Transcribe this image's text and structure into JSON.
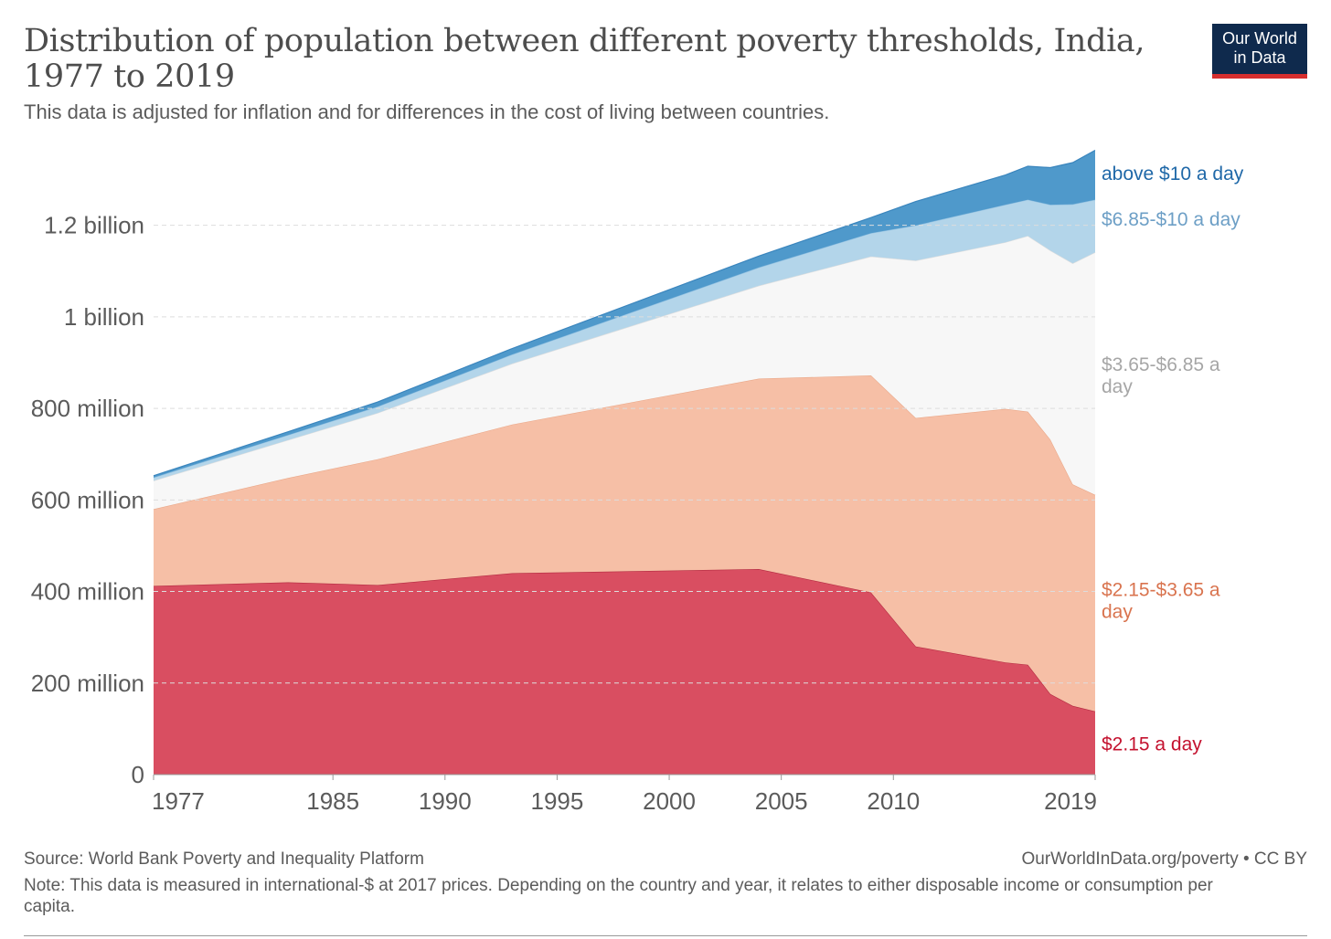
{
  "header": {
    "title": "Distribution of population between different poverty thresholds, India, 1977 to 2019",
    "subtitle": "This data is adjusted for inflation and for differences in the cost of living between countries.",
    "logo_line1": "Our World",
    "logo_line2": "in Data"
  },
  "footer": {
    "source": "Source: World Bank Poverty and Inequality Platform",
    "credit": "OurWorldInData.org/poverty • CC BY",
    "note": "Note: This data is measured in international-$ at 2017 prices. Depending on the country and year, it relates to either disposable income or consumption per capita."
  },
  "chart_data": {
    "type": "area",
    "stacked": true,
    "x": [
      1977,
      1983,
      1987,
      1993,
      2004,
      2009,
      2011,
      2015,
      2016,
      2017,
      2018,
      2019
    ],
    "x_ticks": [
      "1977",
      "1985",
      "1990",
      "1995",
      "2000",
      "2005",
      "2010",
      "2019"
    ],
    "y_ticks": [
      {
        "value": 0,
        "label": "0"
      },
      {
        "value": 200000000,
        "label": "200 million"
      },
      {
        "value": 400000000,
        "label": "400 million"
      },
      {
        "value": 600000000,
        "label": "600 million"
      },
      {
        "value": 800000000,
        "label": "800 million"
      },
      {
        "value": 1000000000,
        "label": "1 billion"
      },
      {
        "value": 1200000000,
        "label": "1.2 billion"
      }
    ],
    "ylim": [
      0,
      1365000000
    ],
    "xlim": [
      1977,
      2019
    ],
    "grid": "horizontal dashed",
    "legend": "right, inline labels",
    "series": [
      {
        "name": "$2.15 a day",
        "color": "#d94e61",
        "label_color": "#c4122f",
        "values": [
          412000000,
          420000000,
          414000000,
          440000000,
          449000000,
          398000000,
          280000000,
          245000000,
          240000000,
          176000000,
          150000000,
          138000000
        ]
      },
      {
        "name": "$2.15-$3.65 a day",
        "color": "#f6bfa6",
        "label_color": "#d9744f",
        "values": [
          168000000,
          228000000,
          275000000,
          325000000,
          416000000,
          474000000,
          499000000,
          554000000,
          553000000,
          556000000,
          484000000,
          473000000
        ]
      },
      {
        "name": "$3.65-$6.85 a day",
        "color": "#f7f7f7",
        "label_color": "#a6a6a6",
        "values": [
          62000000,
          83000000,
          101000000,
          133000000,
          203000000,
          260000000,
          344000000,
          364000000,
          384000000,
          413000000,
          483000000,
          530000000
        ]
      },
      {
        "name": "$6.85-$10 a day",
        "color": "#b3d5ea",
        "label_color": "#6d9fc6",
        "values": [
          7000000,
          11000000,
          14000000,
          20000000,
          40000000,
          51000000,
          77000000,
          82000000,
          79000000,
          100000000,
          129000000,
          115000000
        ]
      },
      {
        "name": "above $10 a day",
        "color": "#4f99cb",
        "label_color": "#1f68a8",
        "values": [
          4000000,
          7000000,
          10000000,
          13000000,
          25000000,
          34000000,
          52000000,
          65000000,
          73000000,
          81000000,
          91000000,
          108000000
        ]
      }
    ]
  }
}
